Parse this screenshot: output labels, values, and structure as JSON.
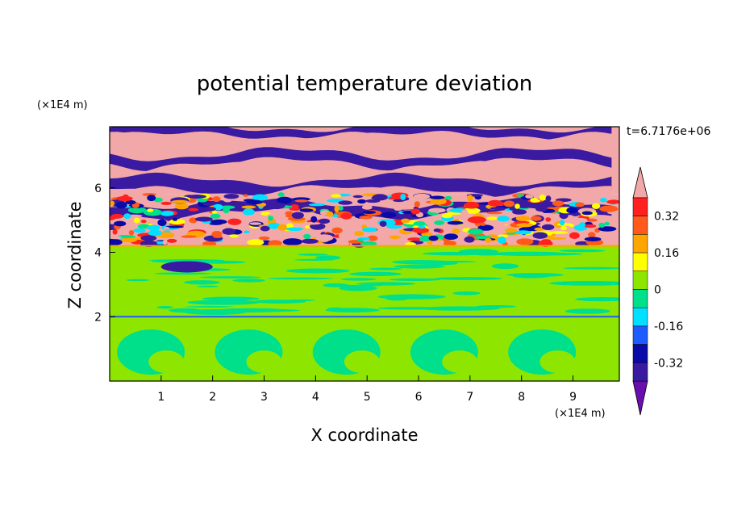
{
  "chart_data": {
    "type": "heatmap",
    "title": "potential temperature deviation",
    "xlabel": "X coordinate",
    "ylabel": "Z coordinate",
    "x_unit": "(×1E4 m)",
    "y_unit": "(×1E4 m)",
    "time_label": "t=6.7176e+06",
    "xlim": [
      0,
      9.9
    ],
    "ylim": [
      0,
      7.9
    ],
    "x_ticks": [
      "1",
      "2",
      "3",
      "4",
      "5",
      "6",
      "7",
      "8",
      "9"
    ],
    "y_ticks": [
      "2",
      "4",
      "6"
    ],
    "colorbar": {
      "labels": [
        "0.32",
        "0.16",
        "0",
        "-0.16",
        "-0.32"
      ],
      "label_values": [
        0.32,
        0.16,
        0,
        -0.16,
        -0.32
      ],
      "levels": [
        -0.4,
        -0.32,
        -0.24,
        -0.16,
        -0.08,
        0,
        0.08,
        0.16,
        0.24,
        0.32,
        0.4
      ],
      "colors": [
        "#6a0dad",
        "#3a1aa0",
        "#0a0aa8",
        "#1e5cff",
        "#00e0ff",
        "#00e08a",
        "#8ee600",
        "#ffff00",
        "#ffa500",
        "#ff5a1a",
        "#ff2020",
        "#f2a8a8"
      ]
    },
    "bands": [
      {
        "z0": 0.0,
        "z1": 2.0,
        "dominant": 0.04,
        "secondary": -0.04,
        "note": "large convective rolls"
      },
      {
        "z0": 2.0,
        "z1": 4.2,
        "dominant": 0.04,
        "secondary": -0.04
      },
      {
        "z0": 4.2,
        "z1": 5.8,
        "dominant": 0.4,
        "secondary": -0.4,
        "mixed": true
      },
      {
        "z0": 5.8,
        "z1": 7.9,
        "dominant": 0.4,
        "secondary": -0.4,
        "note": "alternating layers"
      }
    ]
  }
}
